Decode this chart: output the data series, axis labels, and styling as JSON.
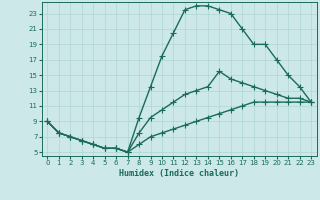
{
  "title": "",
  "xlabel": "Humidex (Indice chaleur)",
  "ylabel": "",
  "background_color": "#cce8e8",
  "grid_color": "#b0d4d4",
  "line_color": "#1a6b5a",
  "xlim": [
    -0.5,
    23.5
  ],
  "ylim": [
    4.5,
    24.5
  ],
  "xticks": [
    0,
    1,
    2,
    3,
    4,
    5,
    6,
    7,
    8,
    9,
    10,
    11,
    12,
    13,
    14,
    15,
    16,
    17,
    18,
    19,
    20,
    21,
    22,
    23
  ],
  "yticks": [
    5,
    7,
    9,
    11,
    13,
    15,
    17,
    19,
    21,
    23
  ],
  "line1_x": [
    0,
    1,
    2,
    3,
    4,
    5,
    6,
    7,
    8,
    9,
    10,
    11,
    12,
    13,
    14,
    15,
    16,
    17,
    18,
    19,
    20,
    21,
    22,
    23
  ],
  "line1_y": [
    9,
    7.5,
    7,
    6.5,
    6,
    5.5,
    5.5,
    5,
    9.5,
    13.5,
    17.5,
    20.5,
    23.5,
    24,
    24,
    23.5,
    23,
    21,
    19,
    19,
    17,
    15,
    13.5,
    11.5
  ],
  "line2_x": [
    0,
    1,
    2,
    3,
    4,
    5,
    6,
    7,
    8,
    9,
    10,
    11,
    12,
    13,
    14,
    15,
    16,
    17,
    18,
    19,
    20,
    21,
    22,
    23
  ],
  "line2_y": [
    9,
    7.5,
    7,
    6.5,
    6,
    5.5,
    5.5,
    5,
    7.5,
    9.5,
    10.5,
    11.5,
    12.5,
    13,
    13.5,
    15.5,
    14.5,
    14,
    13.5,
    13,
    12.5,
    12,
    12,
    11.5
  ],
  "line3_x": [
    0,
    1,
    2,
    3,
    4,
    5,
    6,
    7,
    8,
    9,
    10,
    11,
    12,
    13,
    14,
    15,
    16,
    17,
    18,
    19,
    20,
    21,
    22,
    23
  ],
  "line3_y": [
    9,
    7.5,
    7,
    6.5,
    6,
    5.5,
    5.5,
    5,
    6,
    7,
    7.5,
    8,
    8.5,
    9,
    9.5,
    10,
    10.5,
    11,
    11.5,
    11.5,
    11.5,
    11.5,
    11.5,
    11.5
  ],
  "marker_size": 2.5,
  "line_width": 1.0
}
